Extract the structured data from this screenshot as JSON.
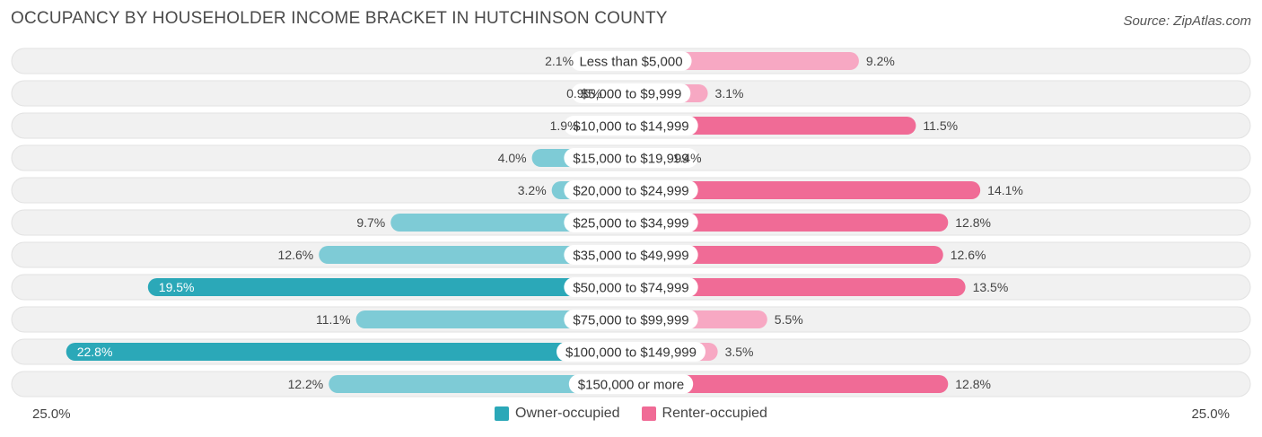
{
  "title": "OCCUPANCY BY HOUSEHOLDER INCOME BRACKET IN HUTCHINSON COUNTY",
  "source": "Source: ZipAtlas.com",
  "axis": {
    "left_label": "25.0%",
    "right_label": "25.0%"
  },
  "legend": {
    "owner_label": "Owner-occupied",
    "renter_label": "Renter-occupied"
  },
  "colors": {
    "owner_light": "#7ecbd6",
    "owner_strong": "#2ba8b8",
    "renter_light": "#f7a8c3",
    "renter_strong": "#f06b96",
    "row_background": "#f2f2f2"
  },
  "chart_data": {
    "type": "bar",
    "orientation": "horizontal-diverging",
    "title": "OCCUPANCY BY HOUSEHOLDER INCOME BRACKET IN HUTCHINSON COUNTY",
    "xlim": [
      -25.0,
      25.0
    ],
    "categories": [
      "Less than $5,000",
      "$5,000 to $9,999",
      "$10,000 to $14,999",
      "$15,000 to $19,999",
      "$20,000 to $24,999",
      "$25,000 to $34,999",
      "$35,000 to $49,999",
      "$50,000 to $74,999",
      "$75,000 to $99,999",
      "$100,000 to $149,999",
      "$150,000 or more"
    ],
    "series": [
      {
        "name": "Owner-occupied",
        "values": [
          2.1,
          0.95,
          1.9,
          4.0,
          3.2,
          9.7,
          12.6,
          19.5,
          11.1,
          22.8,
          12.2
        ],
        "labels": [
          "2.1%",
          "0.95%",
          "1.9%",
          "4.0%",
          "3.2%",
          "9.7%",
          "12.6%",
          "19.5%",
          "11.1%",
          "22.8%",
          "12.2%"
        ]
      },
      {
        "name": "Renter-occupied",
        "values": [
          9.2,
          3.1,
          11.5,
          1.4,
          14.1,
          12.8,
          12.6,
          13.5,
          5.5,
          3.5,
          12.8
        ],
        "labels": [
          "9.2%",
          "3.1%",
          "11.5%",
          "1.4%",
          "14.1%",
          "12.8%",
          "12.6%",
          "13.5%",
          "5.5%",
          "3.5%",
          "12.8%"
        ]
      }
    ]
  }
}
